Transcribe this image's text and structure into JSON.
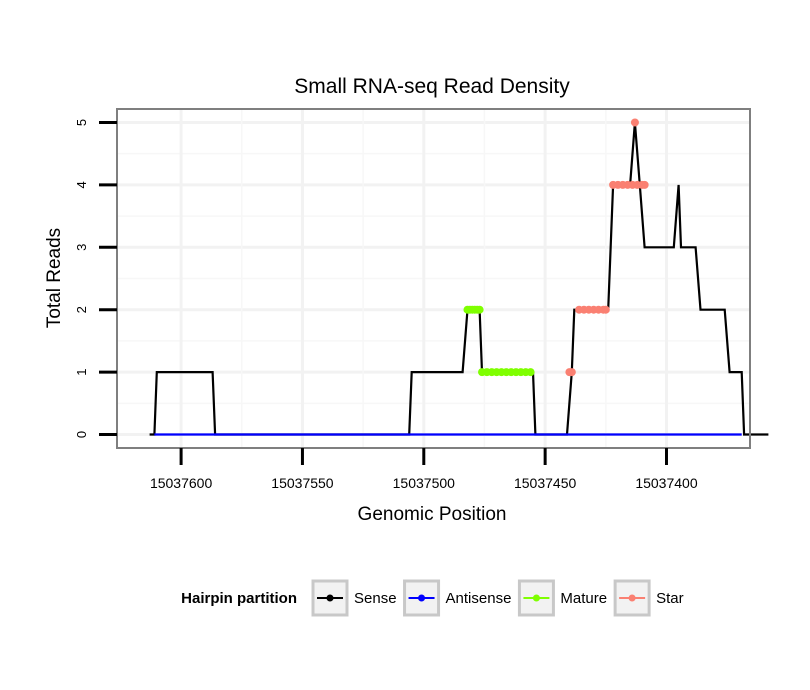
{
  "chart_data": {
    "type": "line",
    "title": "Small RNA-seq Read Density",
    "xlabel": "Genomic Position",
    "ylabel": "Total Reads",
    "x_reversed": true,
    "xlim": [
      15037626,
      15037366
    ],
    "ylim": [
      -0.2,
      5.2
    ],
    "x_ticks": [
      15037600,
      15037550,
      15037500,
      15037450,
      15037400
    ],
    "x_tick_labels": [
      "15037600",
      "15037550",
      "15037500",
      "15037450",
      "15037400"
    ],
    "y_ticks": [
      0,
      1,
      2,
      3,
      4,
      5
    ],
    "y_tick_labels": [
      "0",
      "1",
      "2",
      "3",
      "4",
      "5"
    ],
    "grid": true,
    "legend": {
      "title": "Hairpin partition",
      "position": "bottom",
      "entries": [
        {
          "label": "Sense",
          "color": "#000000"
        },
        {
          "label": "Antisense",
          "color": "#0000ff"
        },
        {
          "label": "Mature",
          "color": "#7fff00"
        },
        {
          "label": "Star",
          "color": "#fa8072"
        }
      ]
    },
    "series": [
      {
        "name": "Sense",
        "color": "#000000",
        "style": "line",
        "points": [
          [
            15037613,
            0
          ],
          [
            15037611,
            0
          ],
          [
            15037610,
            1
          ],
          [
            15037587,
            1
          ],
          [
            15037586,
            0
          ],
          [
            15037506,
            0
          ],
          [
            15037505,
            1
          ],
          [
            15037484,
            1
          ],
          [
            15037482,
            2
          ],
          [
            15037477,
            2
          ],
          [
            15037476,
            1
          ],
          [
            15037455,
            1
          ],
          [
            15037454,
            0
          ],
          [
            15037441,
            0
          ],
          [
            15037439,
            1
          ],
          [
            15037438,
            2
          ],
          [
            15037424,
            2
          ],
          [
            15037422,
            4
          ],
          [
            15037415,
            4
          ],
          [
            15037413,
            5
          ],
          [
            15037411,
            4
          ],
          [
            15037409,
            3
          ],
          [
            15037397,
            3
          ],
          [
            15037395,
            4
          ],
          [
            15037394,
            3
          ],
          [
            15037388,
            3
          ],
          [
            15037386,
            2
          ],
          [
            15037376,
            2
          ],
          [
            15037374,
            1
          ],
          [
            15037369,
            1
          ],
          [
            15037368,
            0
          ],
          [
            15037358,
            0
          ]
        ]
      },
      {
        "name": "Antisense",
        "color": "#0000ff",
        "style": "line",
        "points": [
          [
            15037611,
            0
          ],
          [
            15037369,
            0
          ]
        ]
      },
      {
        "name": "Mature",
        "color": "#7fff00",
        "style": "points",
        "points": [
          [
            15037482,
            2
          ],
          [
            15037481,
            2
          ],
          [
            15037480,
            2
          ],
          [
            15037479,
            2
          ],
          [
            15037478,
            2
          ],
          [
            15037477,
            2
          ],
          [
            15037476,
            1
          ],
          [
            15037474,
            1
          ],
          [
            15037472,
            1
          ],
          [
            15037470,
            1
          ],
          [
            15037468,
            1
          ],
          [
            15037466,
            1
          ],
          [
            15037464,
            1
          ],
          [
            15037462,
            1
          ],
          [
            15037460,
            1
          ],
          [
            15037458,
            1
          ],
          [
            15037456,
            1
          ]
        ]
      },
      {
        "name": "Star",
        "color": "#fa8072",
        "style": "points",
        "points": [
          [
            15037440,
            1
          ],
          [
            15037439,
            1
          ],
          [
            15037436,
            2
          ],
          [
            15037434,
            2
          ],
          [
            15037432,
            2
          ],
          [
            15037430,
            2
          ],
          [
            15037428,
            2
          ],
          [
            15037426,
            2
          ],
          [
            15037425,
            2
          ],
          [
            15037422,
            4
          ],
          [
            15037420,
            4
          ],
          [
            15037418,
            4
          ],
          [
            15037416,
            4
          ],
          [
            15037414,
            4
          ],
          [
            15037412,
            4
          ],
          [
            15037410,
            4
          ],
          [
            15037409,
            4
          ],
          [
            15037413,
            5
          ]
        ]
      }
    ]
  }
}
